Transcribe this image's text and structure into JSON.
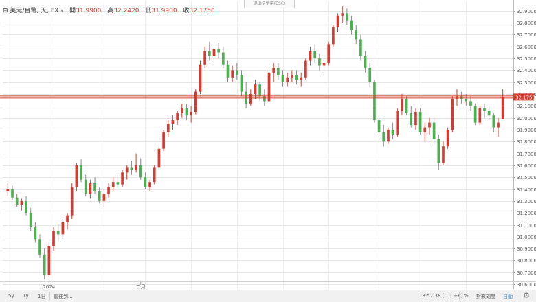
{
  "header": {
    "collapse_symbol": "⊟",
    "symbol_title": "美元/台幣, 天, FX",
    "open_label": "開",
    "open_value": "31.9900",
    "high_label": "高",
    "high_value": "32.2420",
    "low_label": "低",
    "low_value": "31.9900",
    "close_label": "收",
    "close_value": "32.1750",
    "escape_hint": "退出全螢幕(ESC)"
  },
  "bottom_bar": {
    "range_5y": "5y",
    "range_1y": "1y",
    "range_1d": "1日",
    "goto_label": "前往到...",
    "clock": "18:57:38 (UTC+8)",
    "percent_label": "%",
    "log_label": "對數刻度",
    "auto_label": "自動"
  },
  "colors": {
    "up": "#d43a2f",
    "down": "#4caf50",
    "price_line": "#d43a2f",
    "grid": "#e6e6e6"
  },
  "chart_data": {
    "type": "candlestick",
    "ylim": [
      30.56,
      32.98
    ],
    "y_ticks": [
      "32.9000",
      "32.8000",
      "32.7000",
      "32.6000",
      "32.5000",
      "32.4000",
      "32.3000",
      "32.2000",
      "32.1000",
      "32.0000",
      "31.9000",
      "31.8000",
      "31.7000",
      "31.6000",
      "31.5000",
      "31.4000",
      "31.3000",
      "31.2000",
      "31.1000",
      "31.0000",
      "30.9000",
      "30.8000",
      "30.7000",
      "30.6000"
    ],
    "y_tick_values": [
      32.9,
      32.8,
      32.7,
      32.6,
      32.5,
      32.4,
      32.3,
      32.2,
      32.1,
      32.0,
      31.9,
      31.8,
      31.7,
      31.6,
      31.5,
      31.4,
      31.3,
      31.2,
      31.1,
      31.0,
      30.9,
      30.8,
      30.7,
      30.6
    ],
    "x_labels": [
      {
        "label": "2024",
        "index": 9
      },
      {
        "label": "二月",
        "index": 29
      }
    ],
    "last_price": "32.1750",
    "last_price_value": 32.175,
    "candles": [
      [
        31.38,
        31.45,
        31.34,
        31.4
      ],
      [
        31.4,
        31.43,
        31.31,
        31.33
      ],
      [
        31.33,
        31.36,
        31.25,
        31.27
      ],
      [
        31.27,
        31.32,
        31.22,
        31.3
      ],
      [
        31.3,
        31.34,
        31.18,
        31.2
      ],
      [
        31.2,
        31.24,
        31.05,
        31.08
      ],
      [
        31.08,
        31.12,
        30.95,
        30.98
      ],
      [
        30.98,
        31.02,
        30.82,
        30.85
      ],
      [
        30.85,
        30.9,
        30.64,
        30.68
      ],
      [
        30.68,
        30.95,
        30.66,
        30.92
      ],
      [
        30.92,
        31.08,
        30.88,
        31.05
      ],
      [
        31.05,
        31.1,
        30.96,
        31.02
      ],
      [
        31.02,
        31.15,
        30.98,
        31.12
      ],
      [
        31.12,
        31.2,
        31.06,
        31.18
      ],
      [
        31.18,
        31.45,
        31.15,
        31.42
      ],
      [
        31.42,
        31.62,
        31.38,
        31.6
      ],
      [
        31.6,
        31.65,
        31.46,
        31.48
      ],
      [
        31.48,
        31.52,
        31.34,
        31.36
      ],
      [
        31.36,
        31.48,
        31.32,
        31.45
      ],
      [
        31.45,
        31.5,
        31.36,
        31.38
      ],
      [
        31.38,
        31.42,
        31.28,
        31.3
      ],
      [
        31.3,
        31.4,
        31.25,
        31.36
      ],
      [
        31.36,
        31.45,
        31.33,
        31.42
      ],
      [
        31.42,
        31.5,
        31.38,
        31.46
      ],
      [
        31.46,
        31.52,
        31.4,
        31.44
      ],
      [
        31.44,
        31.56,
        31.42,
        31.54
      ],
      [
        31.54,
        31.6,
        31.48,
        31.58
      ],
      [
        31.58,
        31.64,
        31.52,
        31.56
      ],
      [
        31.56,
        31.7,
        31.54,
        31.6
      ],
      [
        31.6,
        31.66,
        31.48,
        31.5
      ],
      [
        31.5,
        31.54,
        31.4,
        31.42
      ],
      [
        31.42,
        31.48,
        31.38,
        31.46
      ],
      [
        31.46,
        31.6,
        31.44,
        31.58
      ],
      [
        31.58,
        31.76,
        31.56,
        31.74
      ],
      [
        31.74,
        31.9,
        31.72,
        31.88
      ],
      [
        31.88,
        31.98,
        31.84,
        31.95
      ],
      [
        31.95,
        32.02,
        31.9,
        31.98
      ],
      [
        31.98,
        32.06,
        31.94,
        32.04
      ],
      [
        32.04,
        32.12,
        32.0,
        32.08
      ],
      [
        32.08,
        32.12,
        31.98,
        32.02
      ],
      [
        32.02,
        32.1,
        31.96,
        32.05
      ],
      [
        32.05,
        32.24,
        32.03,
        32.22
      ],
      [
        32.22,
        32.48,
        32.2,
        32.45
      ],
      [
        32.45,
        32.6,
        32.42,
        32.56
      ],
      [
        32.56,
        32.64,
        32.48,
        32.52
      ],
      [
        32.52,
        32.6,
        32.46,
        32.58
      ],
      [
        32.58,
        32.63,
        32.5,
        32.55
      ],
      [
        32.55,
        32.6,
        32.42,
        32.45
      ],
      [
        32.45,
        32.48,
        32.3,
        32.34
      ],
      [
        32.34,
        32.44,
        32.3,
        32.4
      ],
      [
        32.4,
        32.46,
        32.32,
        32.36
      ],
      [
        32.36,
        32.4,
        32.18,
        32.22
      ],
      [
        32.22,
        32.3,
        32.08,
        32.12
      ],
      [
        32.12,
        32.24,
        32.1,
        32.2
      ],
      [
        32.2,
        32.32,
        32.16,
        32.28
      ],
      [
        32.28,
        32.3,
        32.14,
        32.18
      ],
      [
        32.18,
        32.24,
        32.1,
        32.14
      ],
      [
        32.14,
        32.4,
        32.12,
        32.38
      ],
      [
        32.38,
        32.46,
        32.3,
        32.42
      ],
      [
        32.42,
        32.46,
        32.32,
        32.36
      ],
      [
        32.36,
        32.4,
        32.26,
        32.3
      ],
      [
        32.3,
        32.38,
        32.26,
        32.34
      ],
      [
        32.34,
        32.4,
        32.3,
        32.36
      ],
      [
        32.36,
        32.4,
        32.28,
        32.32
      ],
      [
        32.32,
        32.38,
        32.26,
        32.34
      ],
      [
        32.34,
        32.5,
        32.32,
        32.48
      ],
      [
        32.48,
        32.6,
        32.44,
        32.56
      ],
      [
        32.56,
        32.62,
        32.46,
        32.5
      ],
      [
        32.5,
        32.54,
        32.4,
        32.44
      ],
      [
        32.44,
        32.52,
        32.38,
        32.46
      ],
      [
        32.46,
        32.64,
        32.44,
        32.62
      ],
      [
        32.62,
        32.78,
        32.6,
        32.76
      ],
      [
        32.76,
        32.88,
        32.72,
        32.86
      ],
      [
        32.86,
        32.94,
        32.8,
        32.88
      ],
      [
        32.88,
        32.92,
        32.78,
        32.82
      ],
      [
        32.82,
        32.86,
        32.7,
        32.74
      ],
      [
        32.74,
        32.78,
        32.62,
        32.66
      ],
      [
        32.66,
        32.7,
        32.48,
        32.52
      ],
      [
        32.52,
        32.56,
        32.38,
        32.42
      ],
      [
        32.42,
        32.46,
        32.26,
        32.3
      ],
      [
        32.3,
        32.32,
        31.96,
        31.98
      ],
      [
        31.98,
        32.0,
        31.84,
        31.88
      ],
      [
        31.88,
        31.94,
        31.76,
        31.8
      ],
      [
        31.8,
        31.92,
        31.78,
        31.9
      ],
      [
        31.9,
        31.96,
        31.82,
        31.86
      ],
      [
        31.86,
        32.08,
        31.84,
        32.06
      ],
      [
        32.06,
        32.2,
        32.02,
        32.16
      ],
      [
        32.16,
        32.18,
        32.02,
        32.04
      ],
      [
        32.04,
        32.1,
        31.92,
        31.94
      ],
      [
        31.94,
        32.08,
        31.9,
        32.05
      ],
      [
        32.05,
        32.08,
        31.86,
        31.88
      ],
      [
        31.88,
        31.96,
        31.8,
        31.92
      ],
      [
        31.92,
        32.0,
        31.86,
        31.96
      ],
      [
        31.96,
        32.0,
        31.78,
        31.82
      ],
      [
        31.82,
        31.86,
        31.56,
        31.62
      ],
      [
        31.62,
        31.8,
        31.6,
        31.76
      ],
      [
        31.76,
        31.92,
        31.74,
        31.9
      ],
      [
        31.9,
        32.18,
        31.88,
        32.16
      ],
      [
        32.16,
        32.24,
        32.1,
        32.18
      ],
      [
        32.18,
        32.22,
        32.12,
        32.16
      ],
      [
        32.16,
        32.2,
        32.1,
        32.14
      ],
      [
        32.14,
        32.18,
        32.06,
        32.1
      ],
      [
        32.1,
        32.12,
        31.94,
        31.96
      ],
      [
        31.96,
        32.1,
        31.94,
        32.08
      ],
      [
        32.08,
        32.12,
        32.0,
        32.06
      ],
      [
        32.06,
        32.1,
        31.98,
        32.02
      ],
      [
        32.02,
        32.04,
        31.88,
        31.92
      ],
      [
        31.92,
        32.0,
        31.84,
        31.96
      ],
      [
        31.99,
        32.242,
        31.99,
        32.175
      ]
    ]
  }
}
